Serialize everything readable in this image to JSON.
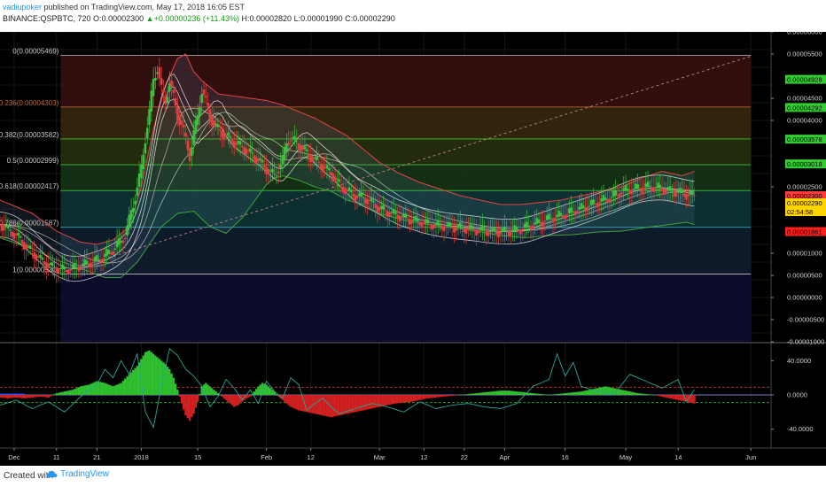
{
  "header": {
    "author": "vadiupoker",
    "published": " published on TradingView.com, May 17, 2018 16:05 EST",
    "symbol": "BINANCE:QSPBTC, 720",
    "o_label": " O:",
    "open": "0.00002300",
    "change": "+0.00000236 (+11.43%)",
    "h_label": " H:",
    "high": "0.00002820",
    "l_label": " L:",
    "low": "0.00001990",
    "c_label": " C:",
    "close": "0.00002290"
  },
  "footer": {
    "created_with": "Created with",
    "brand": "TradingView"
  },
  "colors": {
    "background": "#000000",
    "candle_up": "#3fbf3f",
    "candle_down": "#e04040",
    "upper_band": "#e04545",
    "lower_band": "#3aa33a",
    "fib_green": "#3fd03f",
    "osc_line": "#26a69a",
    "hist_up": "#2fbf2f",
    "hist_down": "#d02020"
  },
  "chart_data": {
    "type": "line",
    "title": "BINANCE:QSPBTC, 720",
    "y_axis_labels": [
      "0.00006000",
      "0.00005500",
      "0.00004500",
      "0.00004000",
      "0.00002500",
      "0.00001000",
      "0.00000500",
      "0.00000000",
      "-0.00000500",
      "-0.00001000"
    ],
    "y_axis_label_values": [
      6e-05,
      5.5e-05,
      4.5e-05,
      4e-05,
      2.5e-05,
      1e-05,
      5e-06,
      0,
      -5e-06,
      -1e-05
    ],
    "ylim": [
      -1e-05,
      6e-05
    ],
    "x_axis_labels": [
      {
        "label": "Dec",
        "t": -0.5
      },
      {
        "label": "11",
        "t": 10
      },
      {
        "label": "21",
        "t": 20
      },
      {
        "label": "2018",
        "t": 31
      },
      {
        "label": "15",
        "t": 45
      },
      {
        "label": "Feb",
        "t": 62
      },
      {
        "label": "12",
        "t": 73
      },
      {
        "label": "Mar",
        "t": 90
      },
      {
        "label": "12",
        "t": 101
      },
      {
        "label": "22",
        "t": 111
      },
      {
        "label": "Apr",
        "t": 121
      },
      {
        "label": "16",
        "t": 136
      },
      {
        "label": "May",
        "t": 151
      },
      {
        "label": "14",
        "t": 164
      },
      {
        "label": "Jun",
        "t": 182
      }
    ],
    "x_axis_unit": "days since Dec 1, 2017",
    "xlim": [
      -4,
      187
    ],
    "fib_levels": [
      {
        "ratio": "0",
        "price": "0.00005469",
        "value": 5.469e-05
      },
      {
        "ratio": "0.236",
        "price": "0.00004303",
        "value": 4.303e-05
      },
      {
        "ratio": "0.382",
        "price": "0.00003582",
        "value": 3.582e-05
      },
      {
        "ratio": "0.5",
        "price": "0.00002999",
        "value": 2.999e-05
      },
      {
        "ratio": "0.618",
        "price": "0.00002417",
        "value": 2.417e-05
      },
      {
        "ratio": "0.786",
        "price": "0.00001587",
        "value": 1.587e-05
      },
      {
        "ratio": "1",
        "price": "0.00000530",
        "value": 5.3e-06
      }
    ],
    "price_tags": [
      {
        "label": "0.00004928",
        "value": 4.928e-05,
        "color": "#33cc33"
      },
      {
        "label": "0.00004292",
        "value": 4.292e-05,
        "color": "#33cc33"
      },
      {
        "label": "0.00003578",
        "value": 3.578e-05,
        "color": "#33cc33"
      },
      {
        "label": "0.00003018",
        "value": 3.018e-05,
        "color": "#33cc33"
      },
      {
        "label": "0.00002300",
        "value": 2.3e-05,
        "color": "#ff3b3b"
      },
      {
        "label": "0.00002290",
        "value": 2.14e-05,
        "color": "#ffd400"
      },
      {
        "label": "02:54:58",
        "value": 1.94e-05,
        "color": "#ffd400"
      },
      {
        "label": "0.00001861",
        "value": 1.49e-05,
        "color": "#ff2020"
      }
    ],
    "price_series": {
      "name": "QSPBTC close",
      "x": [
        -4,
        0,
        3,
        6,
        9,
        12,
        15,
        18,
        21,
        24,
        27,
        29,
        31,
        32,
        33,
        34,
        35,
        36,
        37,
        38,
        39,
        40,
        41,
        42,
        43,
        44,
        45,
        46,
        47,
        48,
        49,
        50,
        52,
        54,
        56,
        58,
        60,
        62,
        64,
        66,
        67,
        68,
        70,
        72,
        74,
        76,
        78,
        80,
        82,
        84,
        86,
        88,
        90,
        93,
        96,
        99,
        102,
        105,
        108,
        111,
        114,
        117,
        120,
        123,
        126,
        129,
        132,
        135,
        138,
        141,
        144,
        147,
        150,
        153,
        156,
        159,
        162,
        165,
        168
      ],
      "y": [
        1.65e-05,
        1.4e-05,
        1.1e-05,
        8.5e-06,
        6.8e-06,
        6.2e-06,
        6.8e-06,
        7.8e-06,
        8.8e-06,
        1.08e-05,
        1.4e-05,
        2.1e-05,
        2.9e-05,
        3.6e-05,
        4.2e-05,
        4.9e-05,
        5.2e-05,
        4.7e-05,
        4.4e-05,
        4.9e-05,
        4.5e-05,
        4.1e-05,
        3.9e-05,
        3.55e-05,
        3.2e-05,
        3.7e-05,
        4.1e-05,
        4.7e-05,
        4.4e-05,
        4.1e-05,
        3.9e-05,
        3.8e-05,
        3.65e-05,
        3.5e-05,
        3.4e-05,
        3.25e-05,
        3.1e-05,
        2.9e-05,
        2.75e-05,
        3.1e-05,
        3.5e-05,
        3.6e-05,
        3.45e-05,
        3.25e-05,
        3.1e-05,
        2.95e-05,
        2.8e-05,
        2.55e-05,
        2.4e-05,
        2.3e-05,
        2.25e-05,
        2.15e-05,
        2e-05,
        1.9e-05,
        1.8e-05,
        1.72e-05,
        1.66e-05,
        1.62e-05,
        1.59e-05,
        1.56e-05,
        1.52e-05,
        1.49e-05,
        1.48e-05,
        1.5e-05,
        1.58e-05,
        1.68e-05,
        1.78e-05,
        1.85e-05,
        1.95e-05,
        2.05e-05,
        2.15e-05,
        2.25e-05,
        2.4e-05,
        2.45e-05,
        2.5e-05,
        2.48e-05,
        2.4e-05,
        2.35e-05,
        2.3e-05
      ]
    },
    "upper_band": {
      "name": "upper band",
      "x": [
        -4,
        4,
        10,
        16,
        20,
        24,
        28,
        31,
        34,
        37,
        40,
        42,
        44,
        46,
        48,
        50,
        54,
        58,
        62,
        66,
        70,
        74,
        78,
        82,
        86,
        90,
        95,
        100,
        105,
        110,
        115,
        120,
        125,
        130,
        135,
        140,
        145,
        150,
        155,
        160,
        165,
        168
      ],
      "y": [
        2.2e-05,
        1.9e-05,
        1.5e-05,
        1.25e-05,
        1.2e-05,
        1.3e-05,
        1.6e-05,
        2.5e-05,
        3.8e-05,
        4.8e-05,
        5.4e-05,
        5.5e-05,
        5.1e-05,
        4.9e-05,
        4.75e-05,
        4.6e-05,
        4.55e-05,
        4.5e-05,
        4.45e-05,
        4.35e-05,
        4.2e-05,
        4.05e-05,
        3.85e-05,
        3.65e-05,
        3.35e-05,
        3.05e-05,
        2.8e-05,
        2.6e-05,
        2.45e-05,
        2.3e-05,
        2.2e-05,
        2.1e-05,
        2.1e-05,
        2.15e-05,
        2.2e-05,
        2.3e-05,
        2.4e-05,
        2.5e-05,
        2.7e-05,
        2.85e-05,
        2.75e-05,
        2.85e-05
      ]
    },
    "lower_band": {
      "name": "lower band",
      "x": [
        -4,
        4,
        10,
        16,
        22,
        26,
        30,
        33,
        36,
        40,
        44,
        48,
        52,
        56,
        60,
        62,
        64,
        66,
        70,
        74,
        78,
        82,
        86,
        90,
        96,
        102,
        108,
        114,
        120,
        126,
        132,
        138,
        144,
        150,
        156,
        162,
        166,
        168
      ],
      "y": [
        1.35e-05,
        1.1e-05,
        8.5e-06,
        6.5e-06,
        4.5e-06,
        4.5e-06,
        8e-06,
        1.2e-05,
        1.6e-05,
        1.9e-05,
        1.95e-05,
        1.6e-05,
        1.45e-05,
        1.8e-05,
        2.3e-05,
        2.55e-05,
        2.7e-05,
        2.75e-05,
        2.65e-05,
        2.5e-05,
        2.4e-05,
        2.2e-05,
        2.1e-05,
        1.9e-05,
        1.75e-05,
        1.65e-05,
        1.58e-05,
        1.5e-05,
        1.4e-05,
        1.35e-05,
        1.4e-05,
        1.42e-05,
        1.48e-05,
        1.5e-05,
        1.58e-05,
        1.65e-05,
        1.7e-05,
        1.65e-05
      ]
    },
    "oscillator": {
      "y_axis_labels": [
        "40.0000",
        "0.0000",
        "-40.0000"
      ],
      "y_axis_label_values": [
        40,
        0,
        -40
      ],
      "ylim": [
        -60,
        60
      ],
      "line": {
        "name": "oscillator",
        "x": [
          -4,
          0,
          4,
          8,
          12,
          16,
          20,
          22,
          24,
          26,
          28,
          30,
          32,
          34,
          36,
          38,
          40,
          42,
          44,
          46,
          48,
          50,
          52,
          54,
          56,
          58,
          60,
          62,
          64,
          66,
          68,
          70,
          72,
          74,
          76,
          78,
          80,
          84,
          88,
          92,
          96,
          100,
          104,
          108,
          112,
          116,
          120,
          124,
          128,
          132,
          134,
          136,
          138,
          140,
          144,
          148,
          152,
          156,
          160,
          164,
          166,
          168
        ],
        "y": [
          -12,
          -6,
          -16,
          -8,
          -20,
          -2,
          12,
          30,
          20,
          40,
          24,
          48,
          -20,
          -38,
          10,
          54,
          46,
          30,
          22,
          10,
          -14,
          -2,
          18,
          8,
          -6,
          6,
          -10,
          16,
          4,
          -4,
          20,
          12,
          -18,
          -10,
          -4,
          -14,
          -22,
          -16,
          -10,
          -14,
          -20,
          -8,
          -16,
          -12,
          -10,
          -14,
          -16,
          -10,
          10,
          18,
          48,
          22,
          38,
          10,
          4,
          0,
          24,
          16,
          8,
          18,
          -8,
          6
        ]
      },
      "histogram": {
        "x": [
          -4,
          -2,
          0,
          2,
          4,
          6,
          8,
          10,
          12,
          14,
          16,
          18,
          20,
          22,
          24,
          26,
          28,
          30,
          31,
          32,
          33,
          34,
          35,
          36,
          37,
          38,
          39,
          40,
          41,
          42,
          43,
          44,
          45,
          46,
          47,
          48,
          49,
          50,
          51,
          52,
          53,
          54,
          55,
          56,
          57,
          58,
          59,
          60,
          61,
          62,
          63,
          64,
          65,
          66,
          67,
          68,
          70,
          72,
          74,
          76,
          78,
          80,
          82,
          84,
          86,
          88,
          90,
          92,
          94,
          96,
          98,
          100,
          102,
          104,
          106,
          108,
          110,
          112,
          114,
          116,
          118,
          120,
          122,
          124,
          126,
          128,
          130,
          132,
          134,
          136,
          138,
          140,
          142,
          144,
          146,
          148,
          150,
          152,
          154,
          156,
          158,
          160,
          162,
          164,
          166,
          168
        ],
        "y": [
          -3,
          -4,
          -3,
          -4,
          -3,
          -2,
          -3,
          2,
          4,
          6,
          10,
          12,
          16,
          14,
          10,
          14,
          24,
          34,
          42,
          50,
          52,
          48,
          44,
          40,
          36,
          30,
          20,
          6,
          -10,
          -24,
          -30,
          -22,
          -8,
          10,
          14,
          10,
          6,
          2,
          -2,
          -6,
          -10,
          -14,
          -12,
          -8,
          -4,
          -2,
          4,
          10,
          14,
          12,
          8,
          4,
          -2,
          -6,
          -10,
          -14,
          -18,
          -20,
          -22,
          -24,
          -26,
          -24,
          -22,
          -20,
          -18,
          -16,
          -14,
          -12,
          -10,
          -9,
          -8,
          -6,
          -4,
          -3,
          -2,
          -1,
          0,
          1,
          2,
          3,
          4,
          5,
          5,
          4,
          3,
          2,
          1,
          0,
          1,
          2,
          3,
          4,
          6,
          8,
          10,
          8,
          6,
          4,
          2,
          1,
          0,
          -2,
          -4,
          -6,
          -8,
          -10
        ]
      }
    }
  }
}
